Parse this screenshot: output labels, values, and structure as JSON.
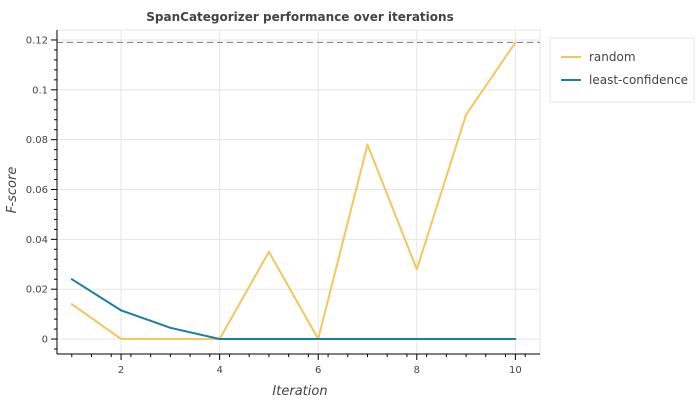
{
  "chart_data": {
    "type": "line",
    "title": "SpanCategorizer performance over iterations",
    "xlabel": "Iteration",
    "ylabel": "F-score",
    "xlim": [
      0.7,
      10.5
    ],
    "ylim": [
      -0.006,
      0.124
    ],
    "x_ticks": [
      2,
      4,
      6,
      8,
      10
    ],
    "y_ticks": [
      0,
      0.02,
      0.04,
      0.06,
      0.08,
      0.1,
      0.12
    ],
    "y_tick_labels": [
      "0",
      "0.02",
      "0.04",
      "0.06",
      "0.08",
      "0.1",
      "0.12"
    ],
    "grid": true,
    "legend_position": "top-right outside",
    "reference_line": {
      "y": 0.119,
      "style": "dashed",
      "color": "#888888"
    },
    "x": [
      1,
      2,
      3,
      4,
      5,
      6,
      7,
      8,
      9,
      10
    ],
    "series": [
      {
        "name": "random",
        "color": "#f2c75c",
        "values": [
          0.014,
          0.0,
          0.0,
          0.0,
          0.035,
          0.0,
          0.078,
          0.028,
          0.09,
          0.119
        ]
      },
      {
        "name": "least-confidence",
        "color": "#1a7fa3",
        "values": [
          0.024,
          0.0115,
          0.0045,
          0.0,
          0.0,
          0.0,
          0.0,
          0.0,
          0.0,
          0.0
        ]
      }
    ]
  }
}
